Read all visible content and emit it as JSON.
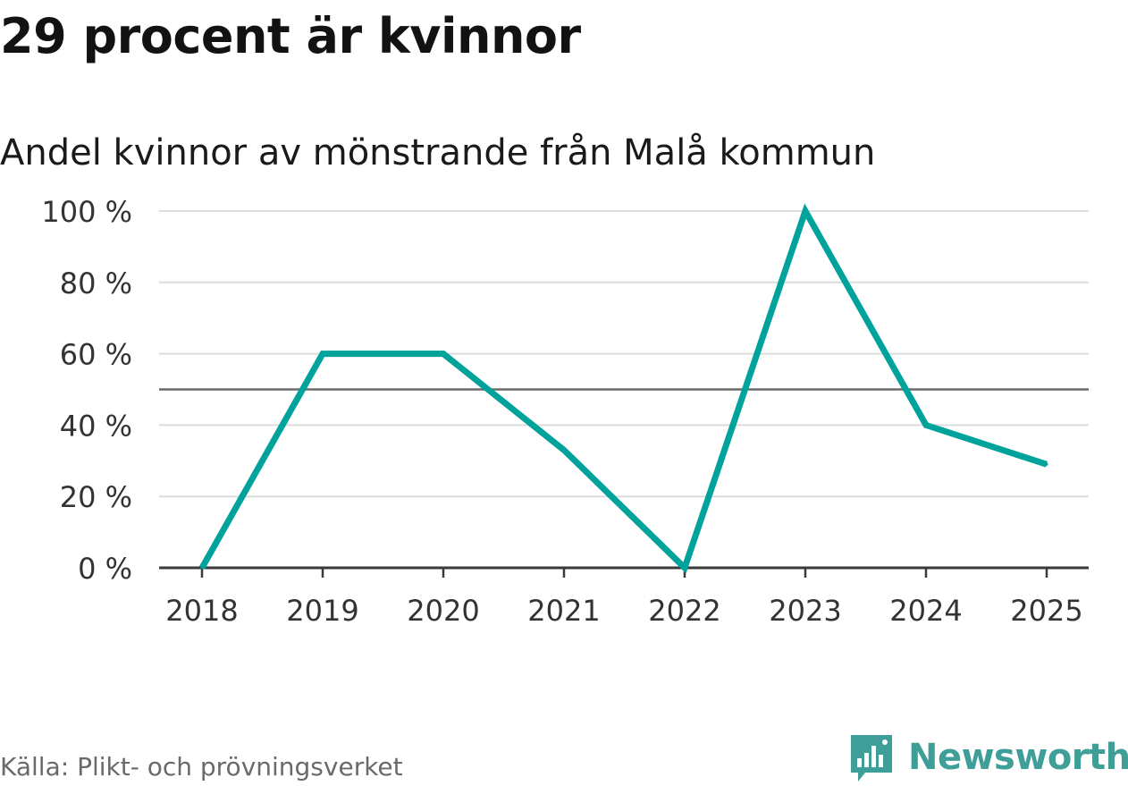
{
  "header": {
    "title": "29 procent är kvinnor",
    "subtitle": "Andel kvinnor av mönstrande från Malå kommun"
  },
  "footer": {
    "source": "Källa: Plikt- och prövningsverket",
    "brand": "Newsworthy",
    "brand_icon": "bar-chart-speech-bubble-icon"
  },
  "colors": {
    "line": "#00a39b",
    "reference_line": "#6b6b6b",
    "grid": "#dcdcdc",
    "axis": "#3a3a3a",
    "brand": "#3f9e98"
  },
  "chart_data": {
    "type": "line",
    "title": "29 procent är kvinnor",
    "subtitle": "Andel kvinnor av mönstrande från Malå kommun",
    "xlabel": "",
    "ylabel": "",
    "categories": [
      "2018",
      "2019",
      "2020",
      "2021",
      "2022",
      "2023",
      "2024",
      "2025"
    ],
    "series": [
      {
        "name": "Andel kvinnor",
        "values": [
          0,
          60,
          60,
          33,
          0,
          100,
          40,
          29
        ]
      }
    ],
    "ylim": [
      0,
      100
    ],
    "yticks": [
      0,
      20,
      40,
      60,
      80,
      100
    ],
    "ytick_labels": [
      "0 %",
      "20 %",
      "40 %",
      "60 %",
      "80 %",
      "100 %"
    ],
    "reference_line": 50,
    "grid": true,
    "legend": "none"
  }
}
